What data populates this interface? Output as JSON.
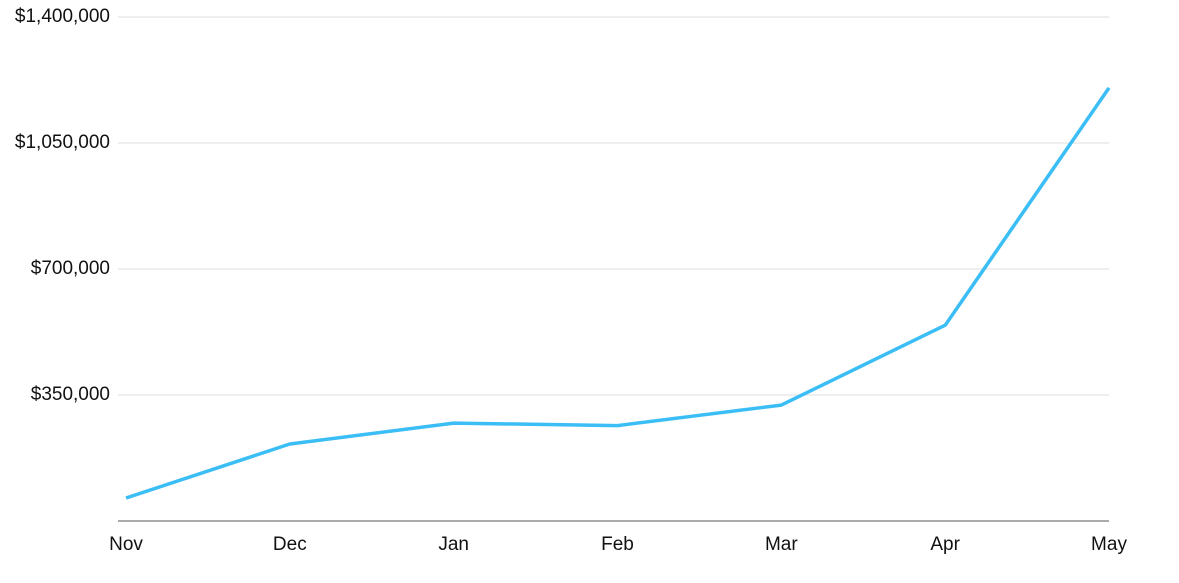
{
  "chart_data": {
    "type": "line",
    "categories": [
      "Nov",
      "Dec",
      "Jan",
      "Feb",
      "Mar",
      "Apr",
      "May"
    ],
    "series": [
      {
        "color": "#3bbdf6",
        "values": [
          64000,
          214000,
          272000,
          265000,
          322000,
          544000,
          1203000
        ]
      }
    ],
    "ylim": [
      0,
      1400000
    ],
    "yticks": [
      {
        "value": 350000,
        "label": "$350,000"
      },
      {
        "value": 700000,
        "label": "$700,000"
      },
      {
        "value": 1050000,
        "label": "$1,050,000"
      },
      {
        "value": 1400000,
        "label": "$1,400,000"
      }
    ],
    "grid": true
  }
}
